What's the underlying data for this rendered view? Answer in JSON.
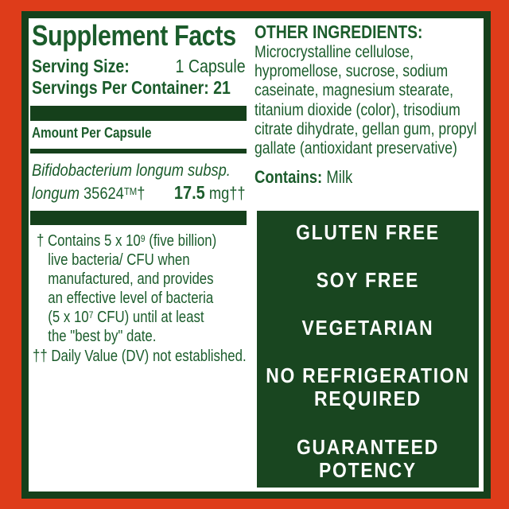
{
  "colors": {
    "background_orange": "#DE3C1A",
    "frame_green": "#15401B",
    "claims_box_green": "#194620",
    "text_green": "#1B5C2B",
    "claims_text": "#FFFFFF"
  },
  "supplement_panel": {
    "title": "Supplement Facts",
    "serving_size_label": "Serving Size:",
    "serving_size_value": "1 Capsule",
    "servings_per_container": "Servings Per Container: 21",
    "amount_header": "Amount Per Capsule",
    "ingredient": {
      "name_line1": "Bifidobacterium longum subsp.",
      "name_line2_italic": "longum",
      "name_line2_rest": " 35624^{TM}†",
      "amount_value": "17.5",
      "amount_unit": " mg††"
    },
    "footnote1_lines": [
      "† Contains 5 x 10^{9} (five billion)",
      "live bacteria/ CFU when",
      "manufactured, and provides",
      "an effective level of bacteria",
      "(5 x 10^{7} CFU) until at least",
      "the \"best by\" date."
    ],
    "footnote2": "†† Daily Value (DV) not established."
  },
  "other_ingredients": {
    "header": "OTHER INGREDIENTS:",
    "lines": [
      "Microcrystalline cellulose,",
      "hypromellose, sucrose, sodium",
      "caseinate, magnesium stearate,",
      "titanium dioxide (color), trisodium",
      "citrate dihydrate, gellan gum, propyl",
      "gallate (antioxidant preservative)"
    ],
    "contains_label": "Contains:",
    "contains_value": " Milk"
  },
  "claims_box": {
    "items": [
      "GLUTEN FREE",
      "SOY FREE",
      "VEGETARIAN",
      "NO REFRIGERATION\nREQUIRED",
      "GUARANTEED\nPOTENCY"
    ]
  }
}
